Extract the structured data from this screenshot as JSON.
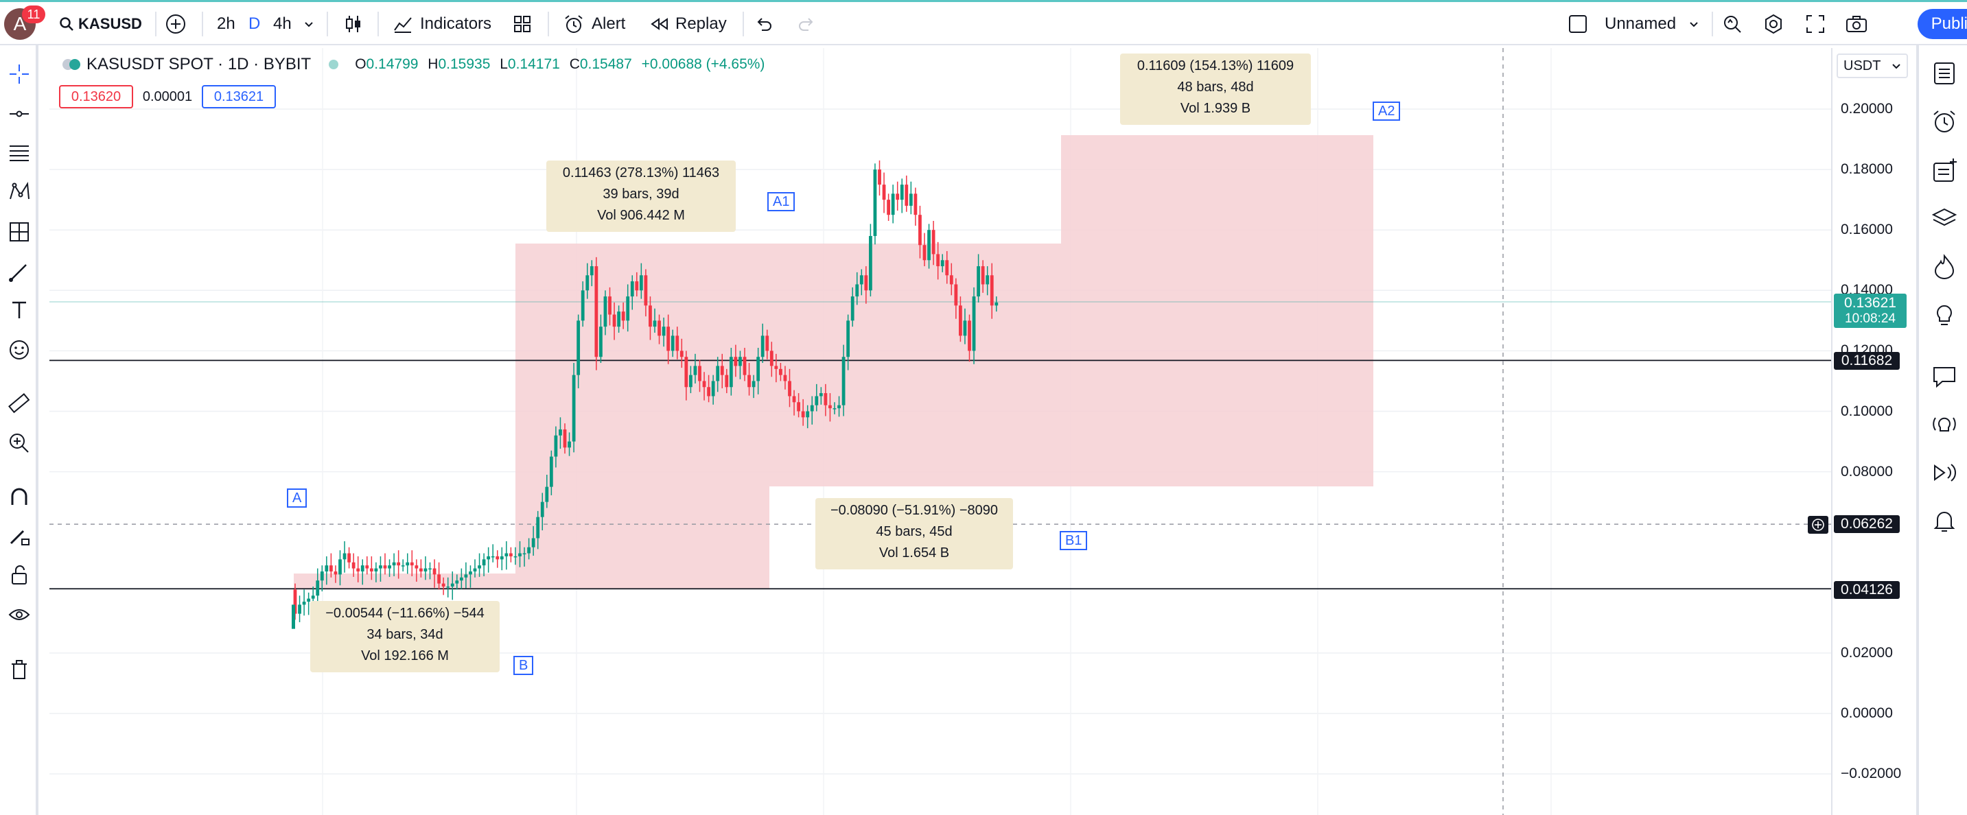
{
  "header": {
    "avatar_letter": "A",
    "notifications": "11",
    "symbol": "KASUSD",
    "intervals": [
      "2h",
      "D",
      "4h"
    ],
    "indicators_label": "Indicators",
    "alert_label": "Alert",
    "replay_label": "Replay",
    "layout_name": "Unnamed",
    "publish_label": "Publish"
  },
  "legend": {
    "title": "KASUSDT SPOT · 1D · BYBIT",
    "o_label": "O",
    "o": "0.14799",
    "h_label": "H",
    "h": "0.15935",
    "l_label": "L",
    "l": "0.14171",
    "c_label": "C",
    "c": "0.15487",
    "change": "+0.00688 (+4.65%)",
    "sell": "0.13620",
    "spread": "0.00001",
    "buy": "0.13621"
  },
  "currency": "USDT",
  "axis": {
    "ticks": [
      "0.20000",
      "0.18000",
      "0.16000",
      "0.14000",
      "0.12000",
      "0.10000",
      "0.08000",
      "0.02000",
      "0.00000",
      "−0.02000"
    ],
    "tick_values": [
      0.2,
      0.18,
      0.16,
      0.14,
      0.12,
      0.1,
      0.08,
      0.02,
      0.0,
      -0.02
    ]
  },
  "price_tags": {
    "last": "0.13621",
    "countdown": "10:08:24",
    "line1": "0.11682",
    "crosshair": "0.06262",
    "line2": "0.04126"
  },
  "measurements": [
    {
      "line1": "−0.00544 (−11.66%) −544",
      "line2": "34 bars, 34d",
      "line3": "Vol 192.166 M"
    },
    {
      "line1": "0.11463 (278.13%) 11463",
      "line2": "39 bars, 39d",
      "line3": "Vol 906.442 M"
    },
    {
      "line1": "−0.08090 (−51.91%) −8090",
      "line2": "45 bars, 45d",
      "line3": "Vol 1.654 B"
    },
    {
      "line1": "0.11609 (154.13%) 11609",
      "line2": "48 bars, 48d",
      "line3": "Vol 1.939 B"
    }
  ],
  "point_labels": {
    "a": "A",
    "b": "B",
    "a1": "A1",
    "b1": "B1",
    "a2": "A2"
  },
  "colors": {
    "up": "#089981",
    "down": "#f23645",
    "accent": "#2962ff",
    "zone": "#f6d0d4",
    "info": "#f2ead1"
  },
  "chart_data": {
    "type": "candlestick",
    "title": "KASUSDT SPOT · 1D · BYBIT",
    "ylim": [
      -0.025,
      0.21
    ],
    "horizontal_lines": [
      0.11682,
      0.04126
    ],
    "crosshair_price": 0.06262,
    "closes": [
      0.033,
      0.036,
      0.037,
      0.038,
      0.039,
      0.044,
      0.047,
      0.049,
      0.047,
      0.046,
      0.051,
      0.053,
      0.05,
      0.048,
      0.047,
      0.049,
      0.048,
      0.047,
      0.048,
      0.049,
      0.048,
      0.049,
      0.05,
      0.049,
      0.049,
      0.05,
      0.049,
      0.048,
      0.047,
      0.048,
      0.048,
      0.046,
      0.043,
      0.042,
      0.042,
      0.043,
      0.044,
      0.045,
      0.046,
      0.047,
      0.048,
      0.049,
      0.051,
      0.052,
      0.052,
      0.051,
      0.052,
      0.053,
      0.052,
      0.052,
      0.053,
      0.053,
      0.055,
      0.058,
      0.065,
      0.07,
      0.075,
      0.085,
      0.092,
      0.094,
      0.088,
      0.09,
      0.112,
      0.13,
      0.14,
      0.145,
      0.148,
      0.118,
      0.128,
      0.138,
      0.132,
      0.128,
      0.133,
      0.13,
      0.138,
      0.143,
      0.14,
      0.145,
      0.135,
      0.128,
      0.13,
      0.125,
      0.128,
      0.12,
      0.125,
      0.12,
      0.118,
      0.108,
      0.112,
      0.115,
      0.11,
      0.108,
      0.105,
      0.11,
      0.115,
      0.112,
      0.108,
      0.118,
      0.115,
      0.118,
      0.112,
      0.108,
      0.11,
      0.118,
      0.125,
      0.12,
      0.115,
      0.114,
      0.112,
      0.11,
      0.105,
      0.103,
      0.1,
      0.098,
      0.1,
      0.102,
      0.105,
      0.106,
      0.102,
      0.101,
      0.101,
      0.102,
      0.118,
      0.13,
      0.138,
      0.142,
      0.145,
      0.14,
      0.158,
      0.18,
      0.175,
      0.17,
      0.165,
      0.172,
      0.17,
      0.175,
      0.168,
      0.172,
      0.165,
      0.155,
      0.15,
      0.16,
      0.152,
      0.148,
      0.15,
      0.145,
      0.142,
      0.135,
      0.125,
      0.13,
      0.12,
      0.138,
      0.148,
      0.142,
      0.145,
      0.135,
      0.136
    ]
  }
}
